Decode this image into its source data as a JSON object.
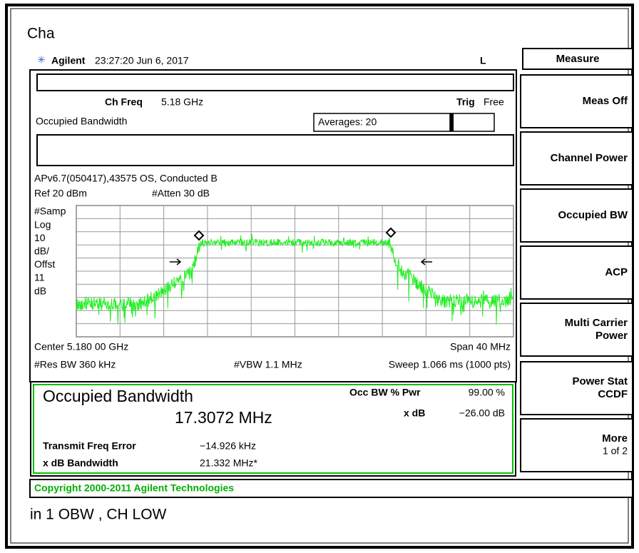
{
  "header": {
    "title": "Cha",
    "brand": "Agilent",
    "timestamp": "23:27:20  Jun 6, 2017",
    "indicator": "L"
  },
  "softkeys": {
    "title": "Measure",
    "keys": [
      {
        "lines": [
          "Meas Off"
        ]
      },
      {
        "lines": [
          "Channel Power"
        ]
      },
      {
        "lines": [
          "Occupied BW"
        ]
      },
      {
        "lines": [
          "ACP"
        ]
      },
      {
        "lines": [
          "Multi Carrier",
          "Power"
        ]
      },
      {
        "lines": [
          "Power Stat",
          "CCDF"
        ]
      },
      {
        "lines": [
          "More"
        ],
        "sub": "1 of 2"
      }
    ]
  },
  "screen": {
    "ch_freq_label": "Ch Freq",
    "ch_freq": "5.18 GHz",
    "trig_label": "Trig",
    "trig": "Free",
    "measurement": "Occupied Bandwidth",
    "averages": "Averages: 20",
    "info": "APv6.7(050417),43575 OS, Conducted B",
    "ref": "Ref 20 dBm",
    "atten": "#Atten 30 dB",
    "scale_labels": [
      "#Samp",
      "Log",
      "10",
      "dB/",
      "Offst",
      "11",
      "dB"
    ],
    "center": "Center 5.180 00 GHz",
    "span": "Span 40 MHz",
    "res_bw": "#Res BW 360 kHz",
    "vbw": "#VBW 1.1 MHz",
    "sweep": "Sweep 1.066 ms (1000 pts)"
  },
  "results": {
    "title": "Occupied Bandwidth",
    "value": "17.3072 MHz",
    "occ_bw_label": "Occ BW % Pwr",
    "occ_bw_value": "99.00 %",
    "xdb_label": "x dB",
    "xdb_value": "−26.00 dB",
    "tfe_label": "Transmit Freq Error",
    "tfe_value": "−14.926 kHz",
    "xdb_bw_label": "x dB Bandwidth",
    "xdb_bw_value": "21.332 MHz*"
  },
  "copyright": "Copyright 2000-2011 Agilent Technologies",
  "caption": "in 1 OBW , CH LOW"
}
